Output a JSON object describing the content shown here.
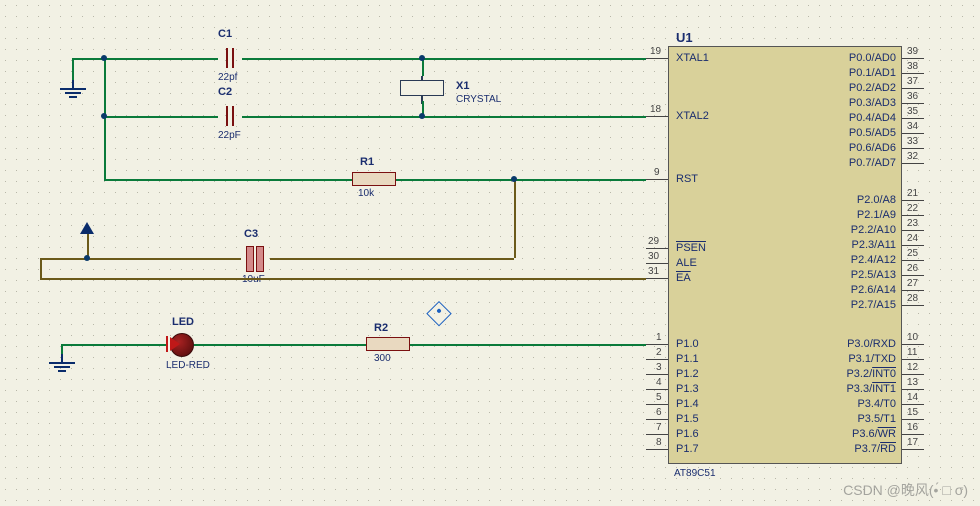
{
  "components": {
    "C1": {
      "ref": "C1",
      "value": "22pf"
    },
    "C2": {
      "ref": "C2",
      "value": "22pF"
    },
    "C3": {
      "ref": "C3",
      "value": "10uF"
    },
    "R1": {
      "ref": "R1",
      "value": "10k"
    },
    "R2": {
      "ref": "R2",
      "value": "300"
    },
    "X1": {
      "ref": "X1",
      "value": "CRYSTAL"
    },
    "LED": {
      "ref": "LED",
      "value": "LED-RED"
    },
    "U1": {
      "ref": "U1",
      "value": "AT89C51"
    }
  },
  "chip": {
    "left_pins": [
      {
        "num": "19",
        "name": "XTAL1",
        "overline": false
      },
      {
        "num": "18",
        "name": "XTAL2",
        "overline": false
      },
      {
        "num": "9",
        "name": "RST",
        "overline": false
      },
      {
        "num": "29",
        "name": "PSEN",
        "overline": true
      },
      {
        "num": "30",
        "name": "ALE",
        "overline": false
      },
      {
        "num": "31",
        "name": "EA",
        "overline": true
      },
      {
        "num": "1",
        "name": "P1.0",
        "overline": false
      },
      {
        "num": "2",
        "name": "P1.1",
        "overline": false
      },
      {
        "num": "3",
        "name": "P1.2",
        "overline": false
      },
      {
        "num": "4",
        "name": "P1.3",
        "overline": false
      },
      {
        "num": "5",
        "name": "P1.4",
        "overline": false
      },
      {
        "num": "6",
        "name": "P1.5",
        "overline": false
      },
      {
        "num": "7",
        "name": "P1.6",
        "overline": false
      },
      {
        "num": "8",
        "name": "P1.7",
        "overline": false
      }
    ],
    "right_pins": [
      {
        "num": "39",
        "name": "P0.0/AD0"
      },
      {
        "num": "38",
        "name": "P0.1/AD1"
      },
      {
        "num": "37",
        "name": "P0.2/AD2"
      },
      {
        "num": "36",
        "name": "P0.3/AD3"
      },
      {
        "num": "35",
        "name": "P0.4/AD4"
      },
      {
        "num": "34",
        "name": "P0.5/AD5"
      },
      {
        "num": "33",
        "name": "P0.6/AD6"
      },
      {
        "num": "32",
        "name": "P0.7/AD7"
      },
      {
        "num": "21",
        "name": "P2.0/A8"
      },
      {
        "num": "22",
        "name": "P2.1/A9"
      },
      {
        "num": "23",
        "name": "P2.2/A10"
      },
      {
        "num": "24",
        "name": "P2.3/A11"
      },
      {
        "num": "25",
        "name": "P2.4/A12"
      },
      {
        "num": "26",
        "name": "P2.5/A13"
      },
      {
        "num": "27",
        "name": "P2.6/A14"
      },
      {
        "num": "28",
        "name": "P2.7/A15"
      },
      {
        "num": "10",
        "name": "P3.0/RXD"
      },
      {
        "num": "11",
        "name": "P3.1/TXD"
      },
      {
        "num": "12",
        "name": "P3.2/INT0",
        "over": "INT0"
      },
      {
        "num": "13",
        "name": "P3.3/INT1",
        "over": "INT1"
      },
      {
        "num": "14",
        "name": "P3.4/T0"
      },
      {
        "num": "15",
        "name": "P3.5/T1"
      },
      {
        "num": "16",
        "name": "P3.6/WR",
        "over": "WR"
      },
      {
        "num": "17",
        "name": "P3.7/RD",
        "over": "RD"
      }
    ]
  },
  "colors": {
    "wire": "#0a7a3a",
    "wire_brown": "#6b5a1a",
    "wire_blue": "#0b3a77",
    "bg": "#f2f1e4",
    "chip": "#d9d19a",
    "text": "#1a2d6e"
  },
  "watermark": "CSDN @晚风(•́ □ σ)"
}
